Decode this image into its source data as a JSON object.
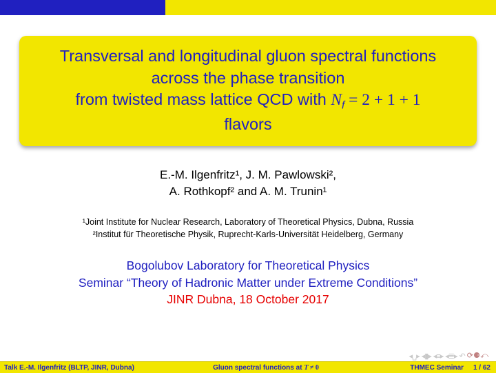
{
  "colors": {
    "brand_blue": "#2020c0",
    "brand_yellow": "#f2e600",
    "text_black": "#000000",
    "text_red": "#e60000",
    "nav_gray": "#c8c8c8",
    "nav_loop": "#c08080"
  },
  "title": {
    "line1": "Transversal and longitudinal gluon spectral functions",
    "line2": "across the phase transition",
    "line3_prefix": "from twisted mass lattice QCD with ",
    "line3_var": "N",
    "line3_sub": "f",
    "line3_eq": " = 2 + 1 + 1",
    "line4": "flavors"
  },
  "authors": {
    "line1": "E.-M. Ilgenfritz¹, J. M. Pawlowski²,",
    "line2": "A. Rothkopf² and A. M. Trunin¹"
  },
  "affil": {
    "line1": "¹Joint Institute for Nuclear Research, Laboratory of Theoretical Physics, Dubna, Russia",
    "line2": "²Institut für Theoretische Physik, Ruprecht-Karls-Universität Heidelberg, Germany"
  },
  "venue": {
    "line1": "Bogolubov Laboratory for Theoretical Physics",
    "line2": "Seminar “Theory of Hadronic Matter under Extreme Conditions”",
    "line3": "JINR Dubna, 18 October 2017"
  },
  "footer": {
    "left": "Talk E.-M. Ilgenfritz (BLTP, JINR, Dubna)",
    "mid_prefix": "Gluon spectral functions at ",
    "mid_var": "T",
    "mid_rel": " ≠ 0",
    "seminar": "THMEC Seminar",
    "page": "1 / 62"
  },
  "nav": {
    "first": "◂␣▸",
    "frame": "◂▮▸",
    "sub": "◂≡▸",
    "slide": "◂≣▸",
    "back": "↶",
    "loop": "⟳ ⚈ ⤺"
  }
}
